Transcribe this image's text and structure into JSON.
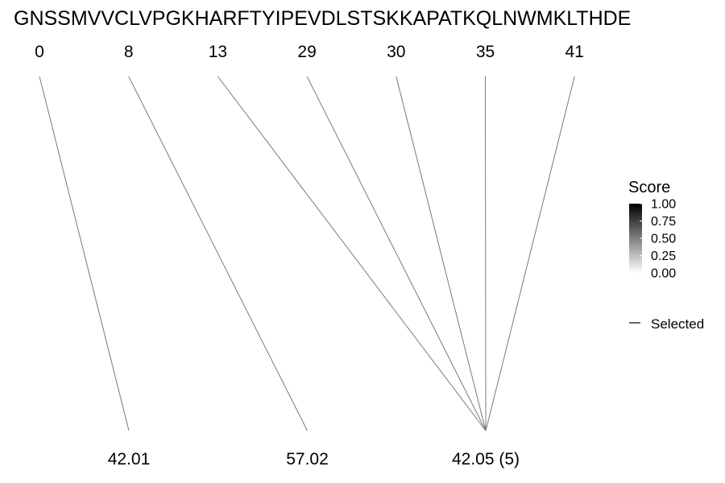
{
  "chart_data": {
    "type": "line",
    "sequence": "GNSSMVVCLVPGKHARFTYIPEVDLSTSKKAPATKQLNWMKLTHDE",
    "top_positions": [
      0,
      8,
      13,
      29,
      30,
      35,
      41
    ],
    "bottom_labels": [
      "42.01",
      "57.02",
      "42.05 (5)"
    ],
    "connections": [
      {
        "from": 0,
        "to": 0
      },
      {
        "from": 8,
        "to": 1
      },
      {
        "from": 13,
        "to": 2
      },
      {
        "from": 29,
        "to": 2
      },
      {
        "from": 30,
        "to": 2
      },
      {
        "from": 35,
        "to": 2
      },
      {
        "from": 41,
        "to": 2
      }
    ],
    "legend": {
      "title": "Score",
      "ticks": [
        "1.00",
        "0.75",
        "0.50",
        "0.25",
        "0.00"
      ],
      "gradient_colors": [
        "#ffffff",
        "#000000"
      ],
      "selected_label": "Selected",
      "selected_color": "#000000"
    },
    "line_color": "#7a7a7a"
  }
}
